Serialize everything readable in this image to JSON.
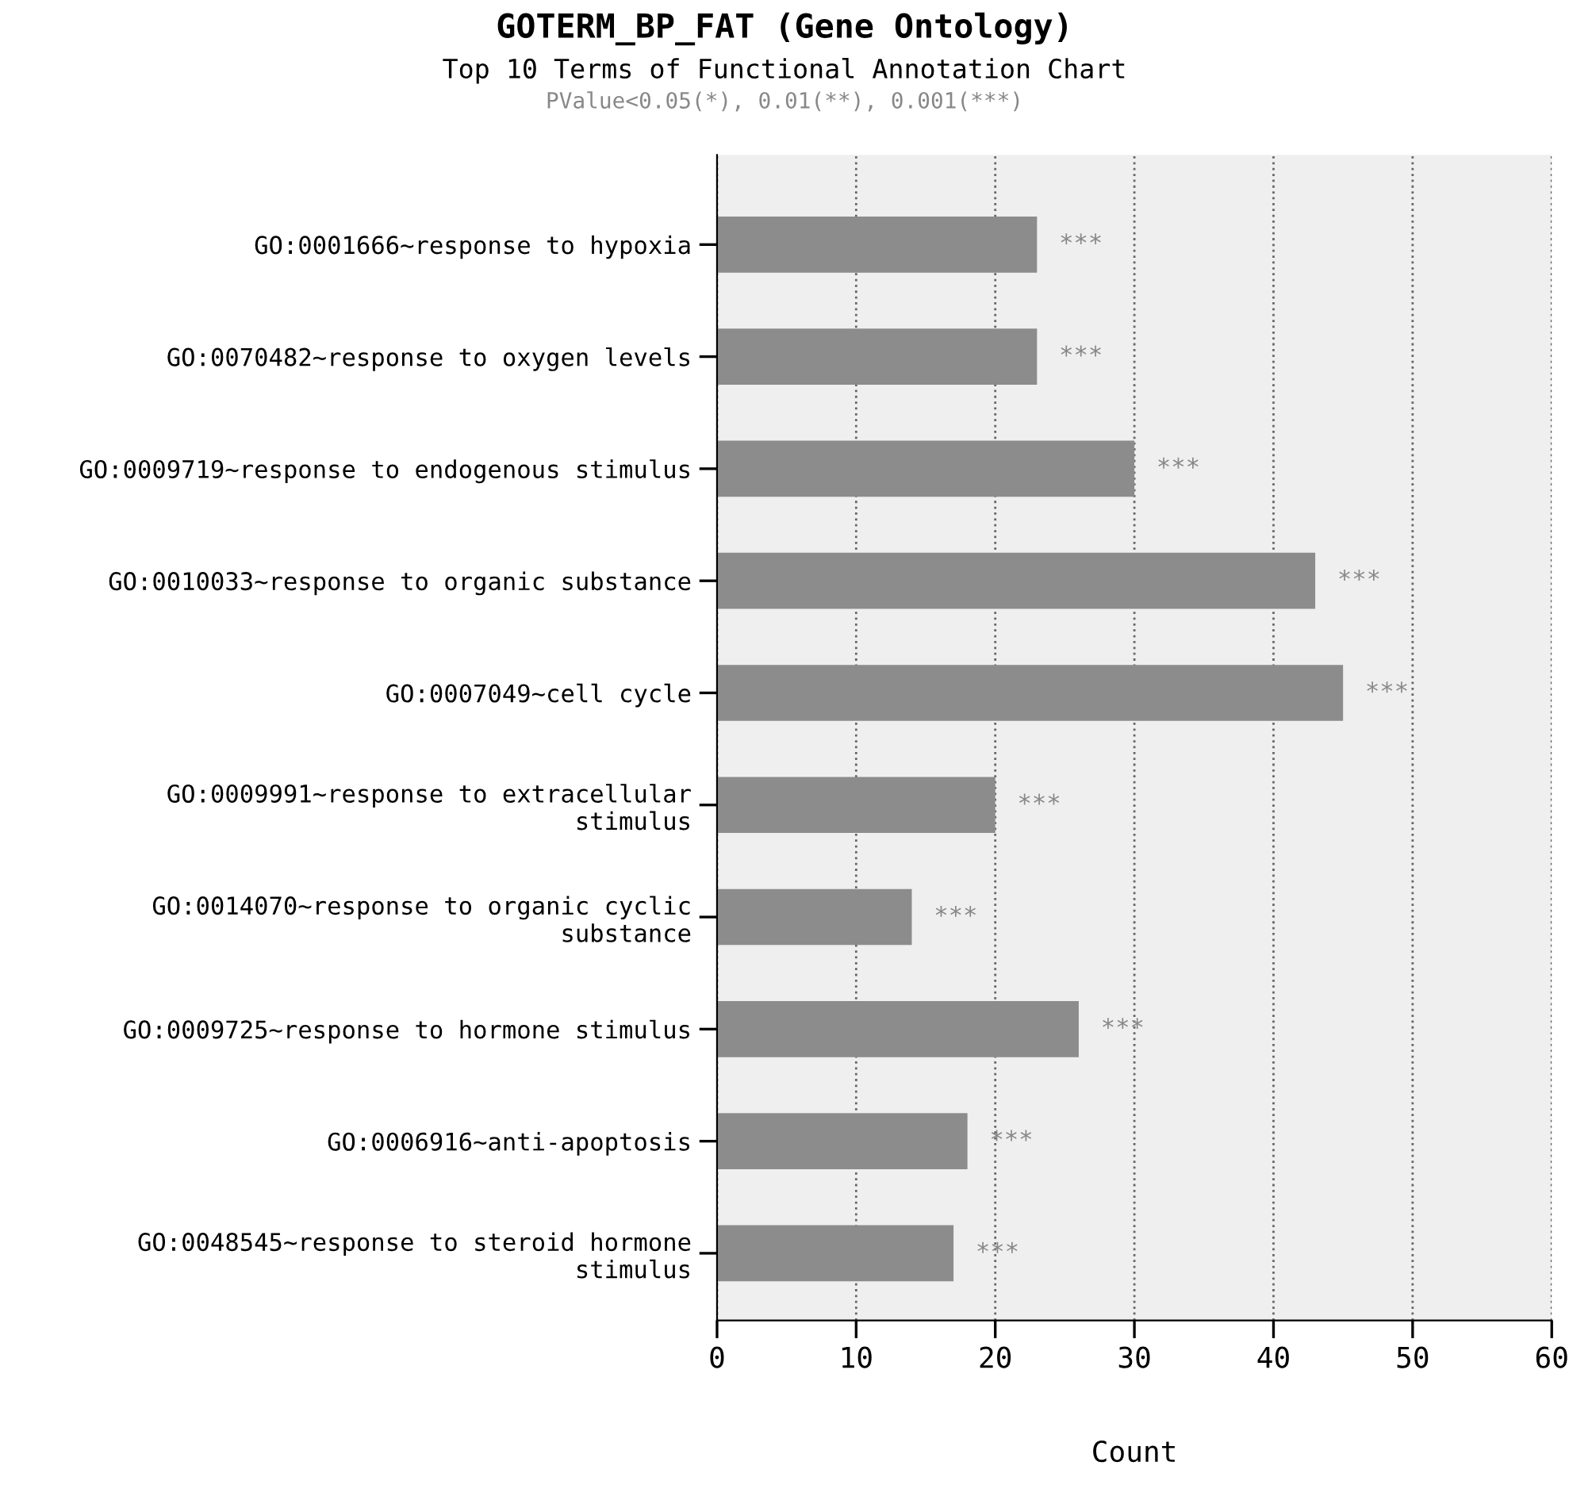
{
  "chart_data": {
    "type": "bar",
    "orientation": "horizontal",
    "title": "GOTERM_BP_FAT (Gene Ontology)",
    "subtitle": "Top 10 Terms of Functional Annotation Chart",
    "annotations": [
      "PValue<0.05(*), 0.01(**), 0.001(***)"
    ],
    "xlabel": "Count",
    "categories": [
      "GO:0001666~response to hypoxia",
      "GO:0070482~response to oxygen levels",
      "GO:0009719~response to endogenous stimulus",
      "GO:0010033~response to organic substance",
      "GO:0007049~cell cycle",
      "GO:0009991~response to extracellular\nstimulus",
      "GO:0014070~response to organic cyclic\nsubstance",
      "GO:0009725~response to hormone stimulus",
      "GO:0006916~anti-apoptosis",
      "GO:0048545~response to steroid hormone\nstimulus"
    ],
    "values": [
      23,
      23,
      30,
      43,
      45,
      20,
      14,
      26,
      18,
      17
    ],
    "value_labels": [
      "***",
      "***",
      "***",
      "***",
      "***",
      "***",
      "***",
      "***",
      "***",
      "***"
    ],
    "color": "#8c8c8c",
    "xlim": [
      0,
      60
    ],
    "xticks": [
      0,
      10,
      20,
      30,
      40,
      50,
      60
    ],
    "grid": "x",
    "line_style": "dotted"
  }
}
